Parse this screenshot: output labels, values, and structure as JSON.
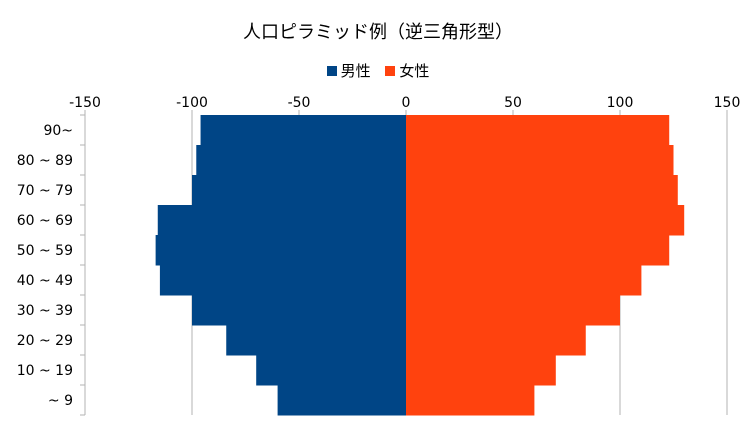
{
  "colors": {
    "male": "#004586",
    "female": "#ff420e",
    "grid": "#b3b3b3",
    "axis": "#b3b3b3"
  },
  "chart_data": {
    "type": "bar",
    "orientation": "horizontal",
    "stacked": true,
    "title": "人口ピラミッド例（逆三角形型）",
    "legend_position": "top",
    "xlim": [
      -150,
      150
    ],
    "xticks": [
      "-150",
      "-100",
      "-50",
      "0",
      "50",
      "100",
      "150"
    ],
    "xtick_values": [
      -150,
      -100,
      -50,
      0,
      50,
      100,
      150
    ],
    "categories": [
      "90~",
      "80 ~ 89",
      "70 ~ 79",
      "60 ~ 69",
      "50 ~ 59",
      "40 ~ 49",
      "30 ~ 39",
      "20 ~ 29",
      "10 ~ 19",
      "~ 9"
    ],
    "series": [
      {
        "name": "男性",
        "values": [
          -96,
          -98,
          -100,
          -116,
          -117,
          -115,
          -100,
          -84,
          -70,
          -60
        ]
      },
      {
        "name": "女性",
        "values": [
          123,
          125,
          127,
          130,
          123,
          110,
          100,
          84,
          70,
          60
        ]
      }
    ]
  }
}
